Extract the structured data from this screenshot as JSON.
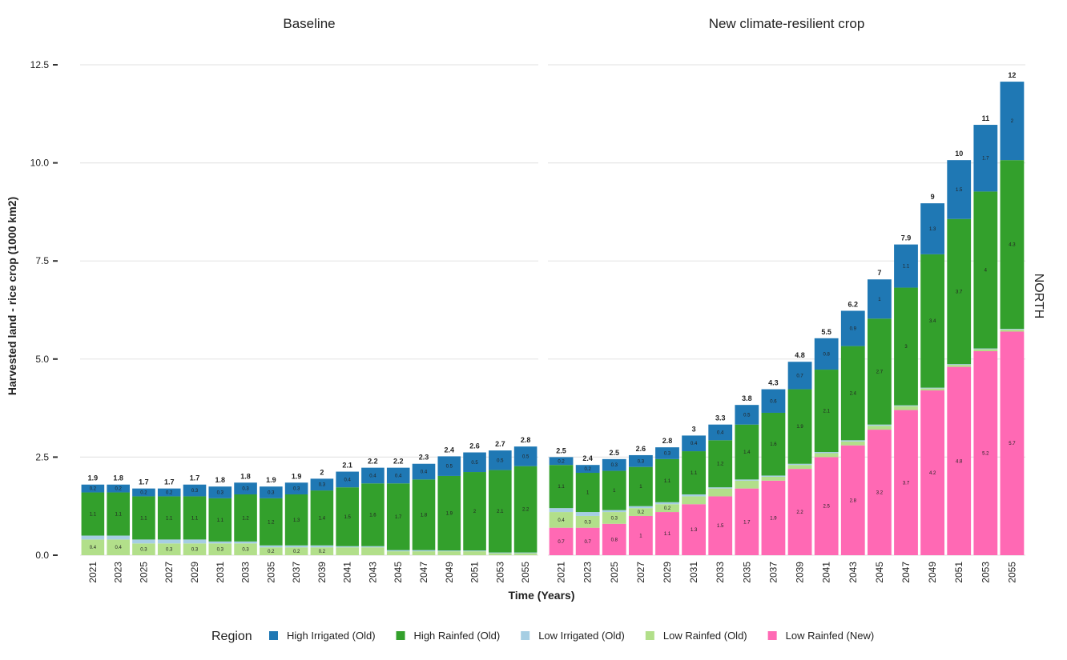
{
  "chart_data": [
    {
      "type": "bar",
      "stacked": true,
      "title": "Baseline",
      "ylabel": "Harvested land - rice crop (1000 km2)",
      "xlabel": "Time (Years)",
      "facet_label": "NORTH",
      "legend_title": "Region",
      "categories": [
        "2021",
        "2023",
        "2025",
        "2027",
        "2029",
        "2031",
        "2033",
        "2035",
        "2037",
        "2039",
        "2041",
        "2043",
        "2045",
        "2047",
        "2049",
        "2051",
        "2053",
        "2055"
      ],
      "ylim": [
        0,
        12.5
      ],
      "yticks": [
        {
          "value": 0,
          "label": "0.0"
        },
        {
          "value": 2.5,
          "label": "2.5"
        },
        {
          "value": 5,
          "label": "5.0"
        },
        {
          "value": 7.5,
          "label": "7.5"
        },
        {
          "value": 10,
          "label": "10.0"
        },
        {
          "value": 12.5,
          "label": "12.5"
        }
      ],
      "grid": true,
      "series": [
        {
          "name": "Low Rainfed (Old)",
          "color": "#b2df8a",
          "values": [
            0.4,
            0.4,
            0.3,
            0.3,
            0.3,
            0.3,
            0.3,
            0.2,
            0.2,
            0.2,
            0.2,
            0.2,
            0.1,
            0.1,
            0.1,
            0.1,
            0.05,
            0.05
          ],
          "value_labels": [
            "0.4",
            "0.4",
            "0.3",
            "0.3",
            "0.3",
            "0.3",
            "0.3",
            "0.2",
            "0.2",
            "0.2",
            null,
            null,
            null,
            null,
            null,
            null,
            null,
            null
          ]
        },
        {
          "name": "Low Irrigated (Old)",
          "color": "#a6cee3",
          "values": [
            0.1,
            0.1,
            0.1,
            0.1,
            0.1,
            0.05,
            0.05,
            0.05,
            0.05,
            0.05,
            0.03,
            0.03,
            0.03,
            0.03,
            0.02,
            0.02,
            0.02,
            0.02
          ],
          "value_labels": [
            null,
            null,
            null,
            null,
            null,
            null,
            null,
            null,
            null,
            null,
            null,
            null,
            null,
            null,
            null,
            null,
            null,
            null
          ]
        },
        {
          "name": "High Rainfed (Old)",
          "color": "#33a02c",
          "values": [
            1.1,
            1.1,
            1.1,
            1.1,
            1.1,
            1.1,
            1.2,
            1.2,
            1.3,
            1.4,
            1.5,
            1.6,
            1.7,
            1.8,
            1.9,
            2,
            2.1,
            2.2
          ]
        },
        {
          "name": "High Irrigated (Old)",
          "color": "#1f78b4",
          "values": [
            0.2,
            0.2,
            0.2,
            0.2,
            0.3,
            0.3,
            0.3,
            0.3,
            0.3,
            0.3,
            0.4,
            0.4,
            0.4,
            0.4,
            0.5,
            0.5,
            0.5,
            0.5
          ]
        }
      ],
      "totals": [
        1.9,
        1.8,
        1.7,
        1.7,
        1.7,
        1.8,
        1.8,
        1.9,
        1.9,
        2,
        2.1,
        2.2,
        2.2,
        2.3,
        2.4,
        2.6,
        2.7,
        2.8
      ]
    },
    {
      "type": "bar",
      "stacked": true,
      "title": "New climate-resilient crop",
      "categories": [
        "2021",
        "2023",
        "2025",
        "2027",
        "2029",
        "2031",
        "2033",
        "2035",
        "2037",
        "2039",
        "2041",
        "2043",
        "2045",
        "2047",
        "2049",
        "2051",
        "2053",
        "2055"
      ],
      "ylim": [
        0,
        12.5
      ],
      "yticks": [
        0,
        2.5,
        5,
        7.5,
        10,
        12.5
      ],
      "grid": true,
      "series": [
        {
          "name": "Low Rainfed (New)",
          "color": "#ff69b4",
          "values": [
            0.7,
            0.7,
            0.8,
            1,
            1.1,
            1.3,
            1.5,
            1.7,
            1.9,
            2.2,
            2.5,
            2.8,
            3.2,
            3.7,
            4.2,
            4.8,
            5.2,
            5.7
          ]
        },
        {
          "name": "Low Rainfed (Old)",
          "color": "#b2df8a",
          "values": [
            0.4,
            0.3,
            0.3,
            0.2,
            0.2,
            0.2,
            0.2,
            0.2,
            0.1,
            0.1,
            0.1,
            0.1,
            0.1,
            0.1,
            0.05,
            0.05,
            0.05,
            0.05
          ],
          "value_labels": [
            "0.4",
            "0.3",
            "0.3",
            "0.2",
            "0.2",
            null,
            null,
            null,
            null,
            null,
            null,
            null,
            null,
            null,
            null,
            null,
            null,
            null
          ]
        },
        {
          "name": "Low Irrigated (Old)",
          "color": "#a6cee3",
          "values": [
            0.1,
            0.1,
            0.05,
            0.05,
            0.05,
            0.05,
            0.03,
            0.03,
            0.03,
            0.03,
            0.03,
            0.03,
            0.03,
            0.02,
            0.02,
            0.02,
            0.02,
            0.02
          ],
          "value_labels": [
            null,
            null,
            null,
            null,
            null,
            null,
            null,
            null,
            null,
            null,
            null,
            null,
            null,
            null,
            null,
            null,
            null,
            null
          ]
        },
        {
          "name": "High Rainfed (Old)",
          "color": "#33a02c",
          "values": [
            1.1,
            1,
            1,
            1,
            1.1,
            1.1,
            1.2,
            1.4,
            1.6,
            1.9,
            2.1,
            2.4,
            2.7,
            3,
            3.4,
            3.7,
            4,
            4.3
          ]
        },
        {
          "name": "High Irrigated (Old)",
          "color": "#1f78b4",
          "values": [
            0.2,
            0.2,
            0.3,
            0.3,
            0.3,
            0.4,
            0.4,
            0.5,
            0.6,
            0.7,
            0.8,
            0.9,
            1,
            1.1,
            1.3,
            1.5,
            1.7,
            2
          ]
        }
      ],
      "totals": [
        2.5,
        2.4,
        2.5,
        2.6,
        2.8,
        3,
        3.3,
        3.8,
        4.3,
        4.8,
        5.5,
        6.2,
        7,
        7.9,
        9,
        10,
        11,
        12
      ]
    }
  ]
}
